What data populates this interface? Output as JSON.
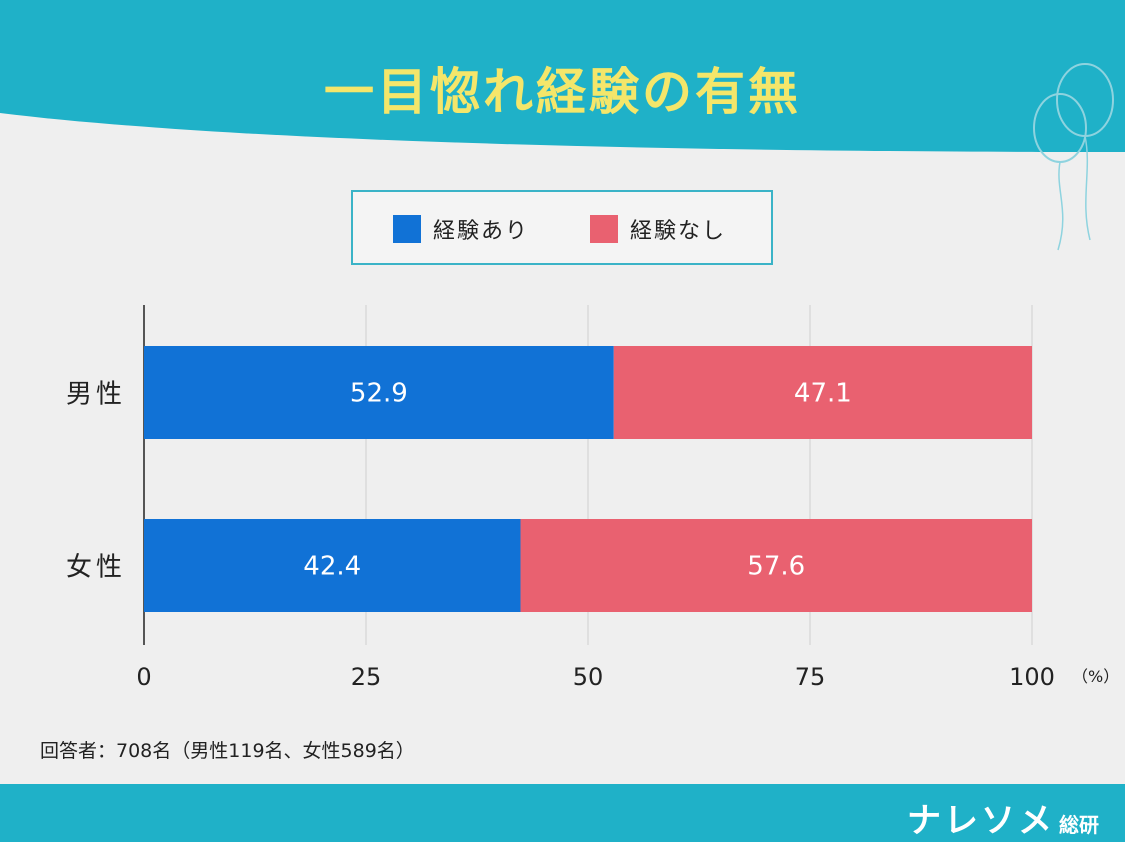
{
  "title": "一目惚れ経験の有無",
  "legend": [
    {
      "label": "経験あり",
      "color": "#1172d6"
    },
    {
      "label": "経験なし",
      "color": "#e96170"
    }
  ],
  "colors": {
    "accent": "#1fb1c8",
    "title": "#f4e66a",
    "yes": "#1172d6",
    "no": "#e96170"
  },
  "note": "回答者：708名（男性119名、女性589名）",
  "brand": {
    "name": "ナレソメ",
    "suffix": "総研"
  },
  "chart_data": {
    "type": "bar",
    "orientation": "horizontal",
    "stacked": true,
    "categories": [
      "男性",
      "女性"
    ],
    "series": [
      {
        "name": "経験あり",
        "values": [
          52.9,
          42.4
        ]
      },
      {
        "name": "経験なし",
        "values": [
          47.1,
          57.6
        ]
      }
    ],
    "xlim": [
      0,
      100
    ],
    "xticks": [
      0,
      25,
      50,
      75,
      100
    ],
    "xunit": "（%）",
    "grid": true,
    "legend": "top-center"
  }
}
